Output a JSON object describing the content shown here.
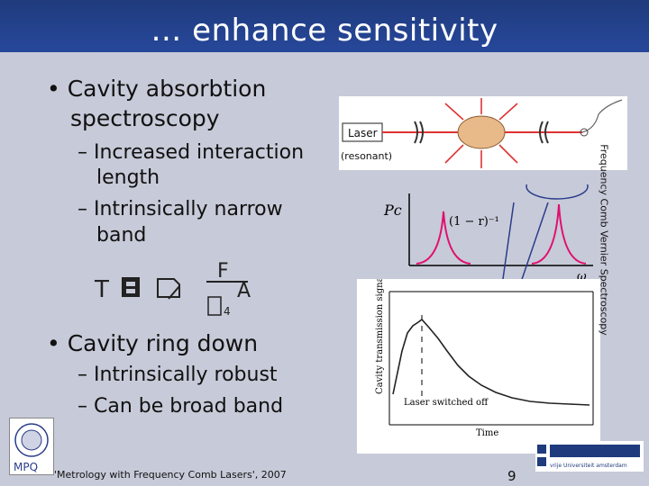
{
  "slide": {
    "title": "… enhance sensitivity",
    "bullet1": "• Cavity absorbtion",
    "bullet1_line2": "spectroscopy",
    "sub1_line1": "– Increased interaction",
    "sub1_line2": "length",
    "sub2_line1": "– Intrinsically narrow",
    "sub2_line2": "band",
    "bullet2": "• Cavity ring down",
    "sub3": "– Intrinsically robust",
    "sub4": "– Can be broad band",
    "side_label": "Frequency Comb Vernier Spectroscopy",
    "footer": "'Metrology with Frequency Comb Lasers', 2007",
    "page_number": "9"
  },
  "figure_laser": {
    "laser_label": "Laser",
    "resonant_label": "(resonant)"
  },
  "figure_cavity": {
    "y_label": "Pc",
    "peak_label": "(1 − r)⁻¹",
    "x_label": "ω"
  },
  "figure_ringdown": {
    "y_label": "Cavity transmission signal",
    "annotation": "Laser switched off",
    "x_label": "Time"
  },
  "logos": {
    "left": "MPQ",
    "right": "vrije Universiteit amsterdam"
  }
}
